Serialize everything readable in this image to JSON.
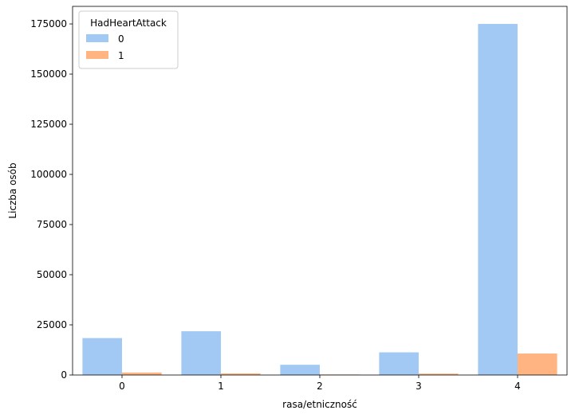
{
  "chart_data": {
    "type": "bar",
    "title": "",
    "xlabel": "rasa/etniczność",
    "ylabel": "Liczba osób",
    "categories": [
      "0",
      "1",
      "2",
      "3",
      "4"
    ],
    "series": [
      {
        "name": "0",
        "color": "#a1c9f4",
        "values": [
          18400,
          21800,
          5100,
          11300,
          175000
        ]
      },
      {
        "name": "1",
        "color": "#ffb482",
        "values": [
          1250,
          800,
          260,
          700,
          10700
        ]
      }
    ],
    "ylim": [
      0,
      183750
    ],
    "yticks": [
      0,
      25000,
      50000,
      75000,
      100000,
      125000,
      150000,
      175000
    ],
    "legend": {
      "title": "HadHeartAttack",
      "placement": "top-left"
    },
    "grid": false
  }
}
